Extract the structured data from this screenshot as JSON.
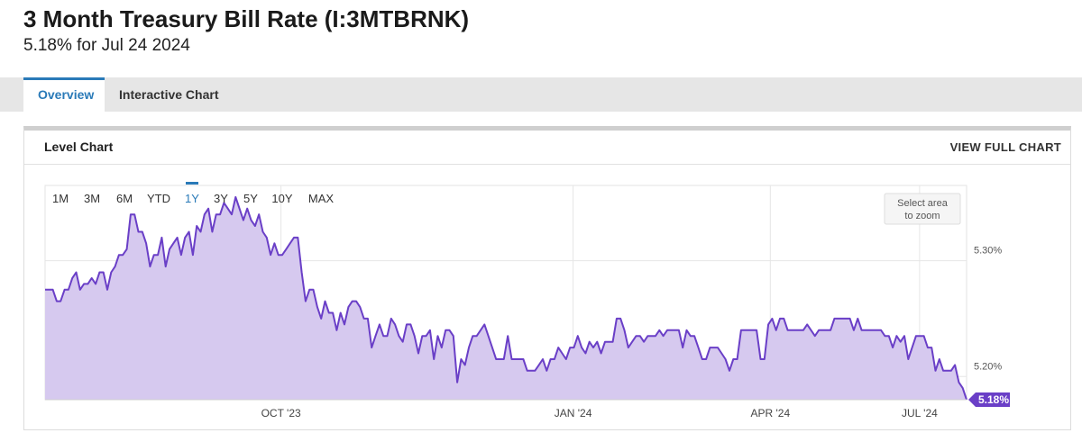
{
  "header": {
    "title": "3 Month Treasury Bill Rate (I:3MTBRNK)",
    "subtitle": "5.18% for Jul 24 2024"
  },
  "tabs": [
    {
      "label": "Overview",
      "active": true
    },
    {
      "label": "Interactive Chart",
      "active": false
    }
  ],
  "card": {
    "title": "Level Chart",
    "view_full_label": "VIEW FULL CHART"
  },
  "range_buttons": [
    "1M",
    "3M",
    "6M",
    "YTD",
    "1Y",
    "3Y",
    "5Y",
    "10Y",
    "MAX"
  ],
  "active_range": "1Y",
  "zoom_hint": [
    "Select area",
    "to zoom"
  ],
  "colors": {
    "line": "#6a3fc7",
    "fill": "#d6c9ef",
    "active": "#2a7ab8",
    "label_bg": "#6a3fc7"
  },
  "chart_data": {
    "type": "area",
    "series": [
      {
        "values": [
          5.275,
          5.275,
          5.275,
          5.265,
          5.265,
          5.275,
          5.275,
          5.285,
          5.29,
          5.275,
          5.28,
          5.28,
          5.285,
          5.28,
          5.29,
          5.29,
          5.275,
          5.29,
          5.295,
          5.305,
          5.305,
          5.31,
          5.34,
          5.34,
          5.325,
          5.325,
          5.315,
          5.295,
          5.305,
          5.305,
          5.32,
          5.295,
          5.31,
          5.315,
          5.32,
          5.305,
          5.32,
          5.325,
          5.305,
          5.33,
          5.325,
          5.34,
          5.345,
          5.325,
          5.34,
          5.34,
          5.35,
          5.345,
          5.34,
          5.355,
          5.345,
          5.335,
          5.345,
          5.335,
          5.33,
          5.34,
          5.325,
          5.32,
          5.305,
          5.315,
          5.305,
          5.305,
          5.31,
          5.315,
          5.32,
          5.32,
          5.29,
          5.265,
          5.275,
          5.275,
          5.26,
          5.25,
          5.265,
          5.255,
          5.255,
          5.24,
          5.255,
          5.245,
          5.26,
          5.265,
          5.265,
          5.26,
          5.25,
          5.25,
          5.225,
          5.235,
          5.245,
          5.235,
          5.235,
          5.25,
          5.245,
          5.235,
          5.23,
          5.245,
          5.245,
          5.235,
          5.22,
          5.235,
          5.235,
          5.24,
          5.215,
          5.235,
          5.225,
          5.24,
          5.24,
          5.235,
          5.195,
          5.215,
          5.21,
          5.225,
          5.235,
          5.235,
          5.24,
          5.245,
          5.235,
          5.225,
          5.215,
          5.215,
          5.215,
          5.235,
          5.215,
          5.215,
          5.215,
          5.215,
          5.205,
          5.205,
          5.205,
          5.21,
          5.215,
          5.205,
          5.215,
          5.215,
          5.225,
          5.22,
          5.215,
          5.225,
          5.225,
          5.235,
          5.225,
          5.22,
          5.23,
          5.225,
          5.23,
          5.22,
          5.23,
          5.23,
          5.23,
          5.25,
          5.25,
          5.24,
          5.225,
          5.23,
          5.235,
          5.235,
          5.23,
          5.235,
          5.235,
          5.235,
          5.24,
          5.235,
          5.24,
          5.24,
          5.24,
          5.24,
          5.225,
          5.24,
          5.235,
          5.235,
          5.225,
          5.215,
          5.215,
          5.225,
          5.225,
          5.225,
          5.22,
          5.215,
          5.205,
          5.215,
          5.215,
          5.24,
          5.24,
          5.24,
          5.24,
          5.24,
          5.215,
          5.215,
          5.245,
          5.25,
          5.24,
          5.25,
          5.25,
          5.24,
          5.24,
          5.24,
          5.24,
          5.24,
          5.245,
          5.24,
          5.235,
          5.24,
          5.24,
          5.24,
          5.24,
          5.25,
          5.25,
          5.25,
          5.25,
          5.25,
          5.24,
          5.25,
          5.24,
          5.24,
          5.24,
          5.24,
          5.24,
          5.24,
          5.235,
          5.235,
          5.225,
          5.235,
          5.23,
          5.235,
          5.215,
          5.225,
          5.235,
          5.235,
          5.235,
          5.225,
          5.225,
          5.205,
          5.215,
          5.205,
          5.205,
          5.205,
          5.21,
          5.195,
          5.19,
          5.18
        ],
        "last_label": "5.18%"
      }
    ],
    "x_tick_labels": [
      "OCT '23",
      "JAN '24",
      "APR '24",
      "JUL '24"
    ],
    "x_tick_positions": [
      0.256,
      0.573,
      0.787,
      0.949
    ],
    "y_ticks": [
      5.3,
      5.2
    ],
    "y_tick_labels": [
      "5.30%",
      "5.20%"
    ],
    "ylim": [
      5.18,
      5.365
    ],
    "grid": true,
    "title": "",
    "xlabel": "",
    "ylabel": ""
  }
}
